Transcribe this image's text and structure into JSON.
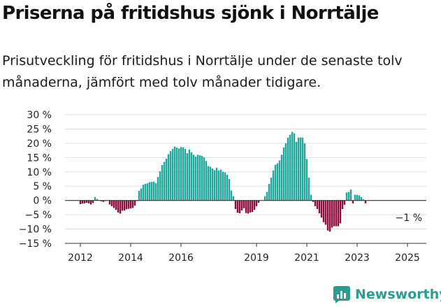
{
  "title": "Priserna på fritidshus sjönk i Norrtälje",
  "subtitle": "Prisutveckling för fritidshus i Norrtälje under de senaste tolv månaderna, jämfört med tolv månader tidigare.",
  "brand": "Newsworthy",
  "colors": {
    "positive": "#1fa59a",
    "negative": "#8c0a3c",
    "grid": "#dddddd",
    "axis": "#333333",
    "brand": "#2a9d8f"
  },
  "chart_data": {
    "type": "bar",
    "title": "",
    "xlabel": "",
    "ylabel": "",
    "ylim": [
      -15,
      30
    ],
    "yticks": [
      30,
      25,
      20,
      15,
      10,
      5,
      0,
      -5,
      -10,
      -15
    ],
    "ytick_labels": [
      "30 %",
      "25 %",
      "20 %",
      "15 %",
      "10 %",
      "5 %",
      "0 %",
      "−5 %",
      "−10 %",
      "−15 %"
    ],
    "xtick_labels": [
      "2012",
      "2014",
      "2016",
      "2019",
      "2021",
      "2023",
      "2025"
    ],
    "annotation": "−1 %",
    "series": [
      {
        "start": "2012-01",
        "values": [
          -1.3,
          -1.1,
          -1.0,
          -0.8,
          -1.0,
          -1.4,
          -0.9,
          1.2,
          0.5,
          null,
          -0.3,
          -0.5,
          -0.2,
          null,
          -1.4,
          -2.0,
          -2.6,
          -3.3,
          -4.2,
          -4.6,
          -3.6,
          -3.5,
          -3.1,
          -2.9,
          -2.8,
          -2.6,
          -1.8,
          -0.2,
          3.4,
          4.2,
          5.5,
          5.8,
          6.0,
          6.4,
          6.5,
          6.6,
          6.0,
          8.2,
          10.2,
          12.4,
          13.5,
          14.6,
          16.2,
          17.3,
          18.0,
          18.8,
          18.5,
          18.2,
          18.7,
          18.6,
          18.0,
          16.5,
          17.8,
          16.9,
          16.0,
          15.3,
          16.0,
          15.8,
          15.6,
          15.1,
          13.8,
          12.0,
          11.8,
          11.2,
          10.6,
          11.5,
          10.5,
          10.8,
          10.0,
          9.8,
          9.0,
          7.5,
          3.5,
          1.5,
          -3.0,
          -4.3,
          -4.5,
          -3.5,
          -2.7,
          -4.4,
          -4.6,
          -4.2,
          -4.0,
          -3.3,
          -2.0,
          -0.8,
          null,
          null,
          1.5,
          3.0,
          5.8,
          8.0,
          10.5,
          12.5,
          13.0,
          14.0,
          16.0,
          18.5,
          20.0,
          22.0,
          23.0,
          24.0,
          23.5,
          20.5,
          22.0,
          22.0,
          22.0,
          20.0,
          14.5,
          8.0,
          2.0,
          -0.5,
          -2.0,
          -3.0,
          -4.5,
          -6.0,
          -7.6,
          -8.5,
          -10.5,
          -10.9,
          -9.5,
          -9.0,
          -9.0,
          -9.0,
          -8.0,
          -3.0,
          -1.5,
          2.8,
          3.0,
          3.8,
          -1.0,
          2.0,
          2.0,
          1.8,
          1.2,
          0.4,
          -1.0
        ]
      }
    ]
  }
}
